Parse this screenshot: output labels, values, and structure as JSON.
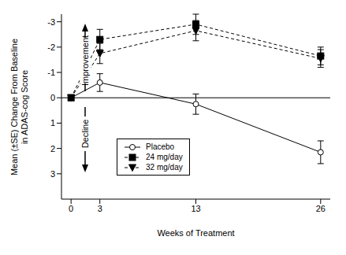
{
  "chart_data": {
    "type": "line",
    "xlabel": "Weeks of Treatment",
    "ylabel": [
      "Mean (±SE) Change From Baseline",
      "in ADAS-cog Score"
    ],
    "annotations": [
      "Improvement",
      "Decline"
    ],
    "x": [
      0,
      3,
      13,
      26
    ],
    "xlim": [
      -1,
      27
    ],
    "xticks": [
      0,
      3,
      13,
      26
    ],
    "ylim": [
      -3.3,
      4
    ],
    "yticks": [
      -3,
      -2,
      -1,
      0,
      1,
      2,
      3
    ],
    "baseline": 0,
    "legend": "center",
    "grid": false,
    "series": [
      {
        "name": "Placebo",
        "color": "#000000",
        "marker": "circle-open",
        "line_style": "solid",
        "values": [
          0,
          -0.6,
          0.25,
          2.15
        ],
        "errors": [
          0,
          0.35,
          0.4,
          0.45
        ]
      },
      {
        "name": "24 mg/day",
        "color": "#000000",
        "marker": "square",
        "line_style": "dashed",
        "values": [
          0,
          -2.3,
          -2.9,
          -1.65
        ],
        "errors": [
          0,
          0.4,
          0.4,
          0.35
        ]
      },
      {
        "name": "32 mg/day",
        "color": "#000000",
        "marker": "triangle-down",
        "line_style": "dashed",
        "values": [
          0,
          -1.75,
          -2.65,
          -1.55
        ],
        "errors": [
          0,
          0.4,
          0.4,
          0.35
        ]
      }
    ]
  }
}
